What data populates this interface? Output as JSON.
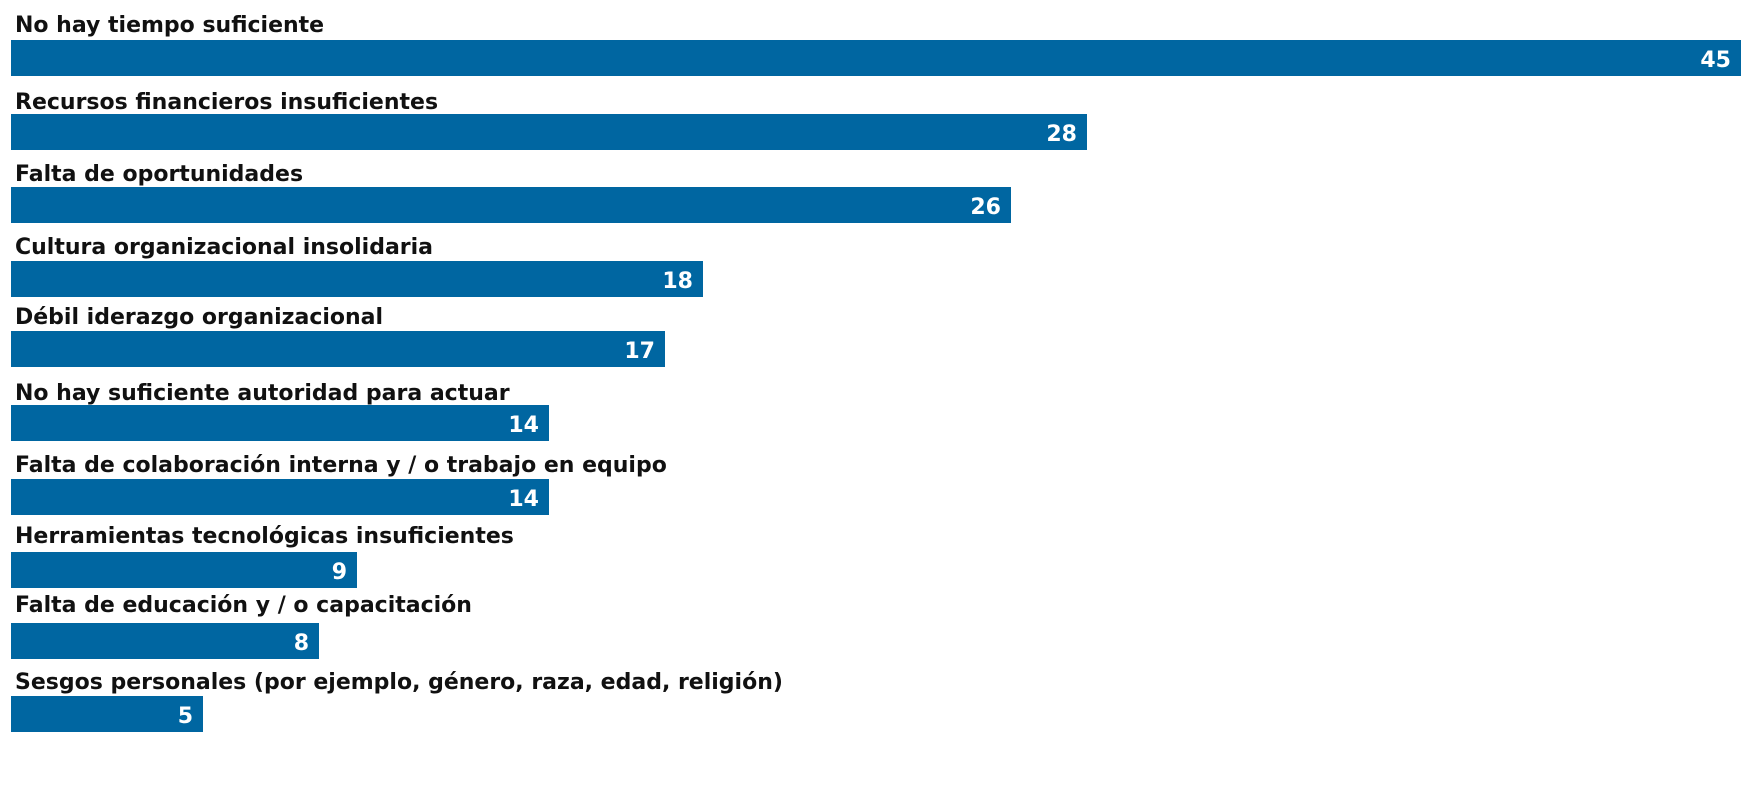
{
  "chart_data": {
    "type": "bar",
    "orientation": "horizontal",
    "categories": [
      "No hay tiempo suficiente",
      "Recursos financieros insuficientes",
      "Falta de oportunidades",
      "Cultura organizacional insolidaria",
      "Débil iderazgo organizacional",
      "No hay suficiente autoridad para actuar",
      "Falta de colaboración interna y / o trabajo en equipo",
      "Herramientas tecnológicas insuficientes",
      "Falta de educación y / o capacitación",
      "Sesgos personales (por ejemplo, género, raza, edad, religión)"
    ],
    "values": [
      45,
      28,
      26,
      18,
      17,
      14,
      14,
      9,
      8,
      5
    ],
    "xlim": [
      0,
      45
    ],
    "grid": false,
    "legend": "none",
    "bar_color": "#0066a1",
    "label_color": "#111111",
    "value_label_color": "#ffffff"
  }
}
